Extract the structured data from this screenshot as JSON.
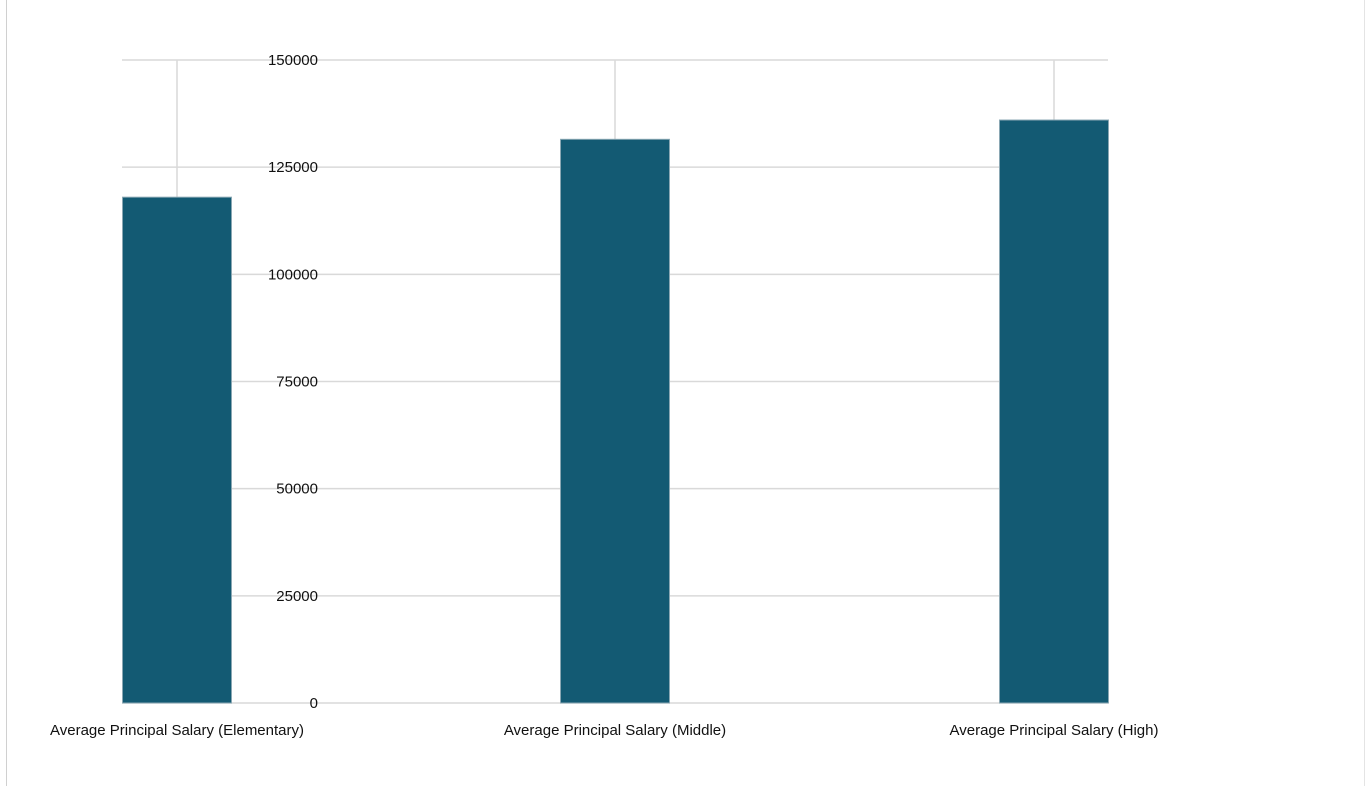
{
  "chart_data": {
    "type": "bar",
    "categories": [
      "Average Principal Salary (Elementary)",
      "Average Principal Salary (Middle)",
      "Average Principal Salary (High)"
    ],
    "values": [
      118000,
      131500,
      136000
    ],
    "ylim": [
      0,
      150000
    ],
    "yticks": [
      "0",
      "25000",
      "50000",
      "75000",
      "100000",
      "125000",
      "150000"
    ],
    "grid": true,
    "bar_color": "#135a73",
    "grid_color": "#d9d9d9"
  }
}
